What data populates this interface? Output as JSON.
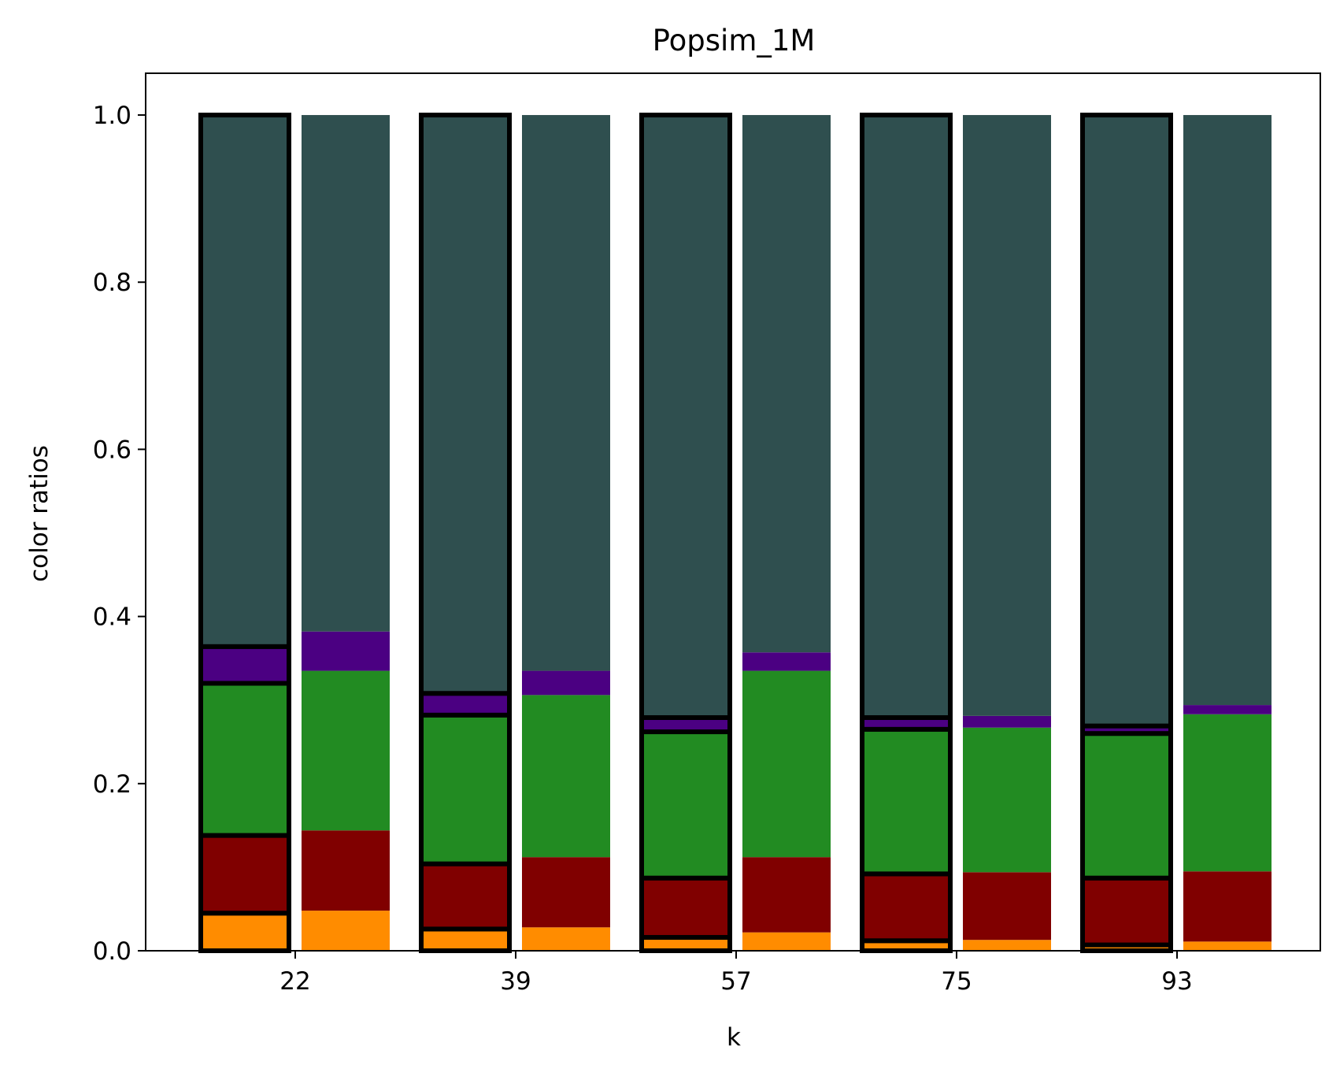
{
  "chart_data": {
    "type": "bar",
    "stacked": true,
    "title": "Popsim_1M",
    "xlabel": "k",
    "ylabel": "color ratios",
    "categories": [
      "22",
      "39",
      "57",
      "75",
      "93"
    ],
    "ylim": [
      0,
      1.05
    ],
    "yticks": [
      0.0,
      0.2,
      0.4,
      0.6,
      0.8,
      1.0
    ],
    "ytick_labels": [
      "0.0",
      "0.2",
      "0.4",
      "0.6",
      "0.8",
      "1.0"
    ],
    "grid": false,
    "legend": "none",
    "bar_groups": [
      {
        "name": "",
        "outlined": true,
        "stacks": [
          [
            0.045,
            0.093,
            0.182,
            0.044,
            0.636
          ],
          [
            0.026,
            0.078,
            0.178,
            0.026,
            0.692
          ],
          [
            0.016,
            0.071,
            0.175,
            0.017,
            0.721
          ],
          [
            0.012,
            0.08,
            0.173,
            0.014,
            0.721
          ],
          [
            0.007,
            0.08,
            0.173,
            0.009,
            0.731
          ]
        ]
      },
      {
        "name": "",
        "outlined": false,
        "stacks": [
          [
            0.048,
            0.096,
            0.191,
            0.047,
            0.618
          ],
          [
            0.028,
            0.084,
            0.194,
            0.029,
            0.665
          ],
          [
            0.022,
            0.09,
            0.223,
            0.022,
            0.643
          ],
          [
            0.013,
            0.081,
            0.173,
            0.014,
            0.719
          ],
          [
            0.011,
            0.084,
            0.188,
            0.011,
            0.706
          ]
        ]
      }
    ],
    "segment_colors": [
      "#ff8c00",
      "#800000",
      "#228b22",
      "#4b0082",
      "#2f4f4f"
    ]
  }
}
